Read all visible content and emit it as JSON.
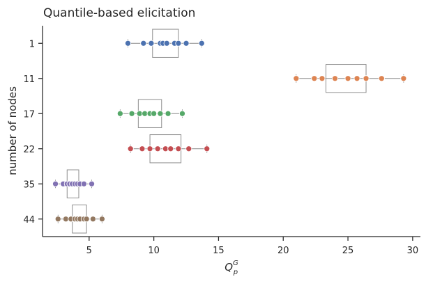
{
  "chart_data": {
    "type": "boxplot-strip",
    "title": "Quantile-based elicitation",
    "xlabel": "Q",
    "xlabel_sup": "G",
    "xlabel_sub": "p",
    "ylabel": "number of nodes",
    "xlim": [
      1.4,
      30.6
    ],
    "xticks": [
      5,
      10,
      15,
      20,
      25,
      30
    ],
    "grid": false,
    "categories": [
      "1",
      "11",
      "17",
      "22",
      "35",
      "44"
    ],
    "series": [
      {
        "category": "1",
        "color": "#4c72b0",
        "box": [
          9.9,
          11.9
        ],
        "whisker": [
          8.0,
          13.7
        ],
        "points": [
          8.0,
          9.2,
          9.8,
          10.5,
          10.7,
          11.0,
          11.6,
          11.9,
          12.5,
          13.7
        ]
      },
      {
        "category": "11",
        "color": "#dd8452",
        "box": [
          23.3,
          26.4
        ],
        "whisker": [
          21.0,
          29.3
        ],
        "points": [
          21.0,
          22.4,
          23.0,
          24.0,
          25.0,
          25.7,
          26.4,
          27.6,
          29.3
        ]
      },
      {
        "category": "17",
        "color": "#55a868",
        "box": [
          8.8,
          10.6
        ],
        "whisker": [
          7.4,
          12.2
        ],
        "points": [
          7.4,
          8.3,
          8.9,
          9.3,
          9.7,
          10.0,
          10.5,
          11.1,
          12.2
        ]
      },
      {
        "category": "22",
        "color": "#c44e52",
        "box": [
          9.7,
          12.1
        ],
        "whisker": [
          8.2,
          14.1
        ],
        "points": [
          8.2,
          9.1,
          9.7,
          10.3,
          10.9,
          11.3,
          11.9,
          12.7,
          14.1
        ]
      },
      {
        "category": "35",
        "color": "#8172b3",
        "box": [
          3.3,
          4.2
        ],
        "whisker": [
          2.4,
          5.2
        ],
        "points": [
          2.4,
          3.0,
          3.3,
          3.5,
          3.7,
          3.9,
          4.1,
          4.3,
          4.6,
          5.2
        ]
      },
      {
        "category": "44",
        "color": "#937860",
        "box": [
          3.7,
          4.8
        ],
        "whisker": [
          2.6,
          6.0
        ],
        "points": [
          2.6,
          3.2,
          3.6,
          3.9,
          4.1,
          4.3,
          4.6,
          4.8,
          5.3,
          6.0
        ]
      }
    ]
  }
}
